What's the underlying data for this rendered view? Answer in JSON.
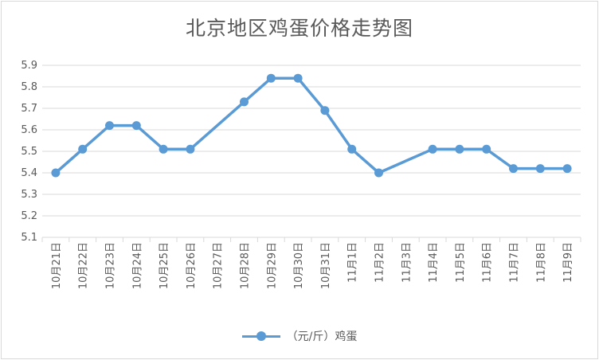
{
  "chart_data": {
    "type": "line",
    "title": "北京地区鸡蛋价格走势图",
    "categories": [
      "10月21日",
      "10月22日",
      "10月23日",
      "10月24日",
      "10月25日",
      "10月26日",
      "10月27日",
      "10月28日",
      "10月29日",
      "10月30日",
      "10月31日",
      "11月1日",
      "11月2日",
      "11月3日",
      "11月4日",
      "11月5日",
      "11月6日",
      "11月7日",
      "11月8日",
      "11月9日"
    ],
    "series": [
      {
        "name": "（元/斤）鸡蛋",
        "values": [
          5.4,
          5.51,
          5.62,
          5.62,
          5.51,
          5.51,
          null,
          5.73,
          5.84,
          5.84,
          5.69,
          5.51,
          5.4,
          null,
          5.51,
          5.51,
          5.51,
          5.42,
          5.42,
          5.42
        ],
        "color": "#5b9bd5"
      }
    ],
    "ylim": [
      5.1,
      5.9
    ],
    "yticks": [
      "5.1",
      "5.2",
      "5.3",
      "5.4",
      "5.5",
      "5.6",
      "5.7",
      "5.8",
      "5.9"
    ],
    "grid": true,
    "legend": "bottom",
    "connect_gaps": true
  }
}
